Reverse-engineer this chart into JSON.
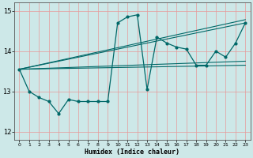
{
  "xlabel": "Humidex (Indice chaleur)",
  "xlim": [
    -0.5,
    23.5
  ],
  "ylim": [
    11.8,
    15.2
  ],
  "yticks": [
    12,
    13,
    14,
    15
  ],
  "xticks": [
    0,
    1,
    2,
    3,
    4,
    5,
    6,
    7,
    8,
    9,
    10,
    11,
    12,
    13,
    14,
    15,
    16,
    17,
    18,
    19,
    20,
    21,
    22,
    23
  ],
  "bg_color": "#cde8e8",
  "line_color": "#006868",
  "grid_color": "#e89898",
  "series_main_x": [
    0,
    1,
    2,
    3,
    4,
    5,
    6,
    7,
    8,
    9,
    10,
    11,
    12,
    13,
    14,
    15,
    16,
    17,
    18,
    19,
    20,
    21,
    22,
    23
  ],
  "series_main_y": [
    13.55,
    13.0,
    12.85,
    12.75,
    12.45,
    12.8,
    12.75,
    12.75,
    12.75,
    12.75,
    14.7,
    14.85,
    14.9,
    13.05,
    14.35,
    14.2,
    14.1,
    14.05,
    13.65,
    13.65,
    14.0,
    13.85,
    14.2,
    14.7
  ],
  "trend1_x": [
    0,
    23
  ],
  "trend1_y": [
    13.55,
    13.65
  ],
  "trend2_x": [
    0,
    23
  ],
  "trend2_y": [
    13.55,
    13.75
  ],
  "trend3_x": [
    0,
    23
  ],
  "trend3_y": [
    13.55,
    14.7
  ],
  "trend4_x": [
    0,
    23
  ],
  "trend4_y": [
    13.55,
    14.78
  ]
}
